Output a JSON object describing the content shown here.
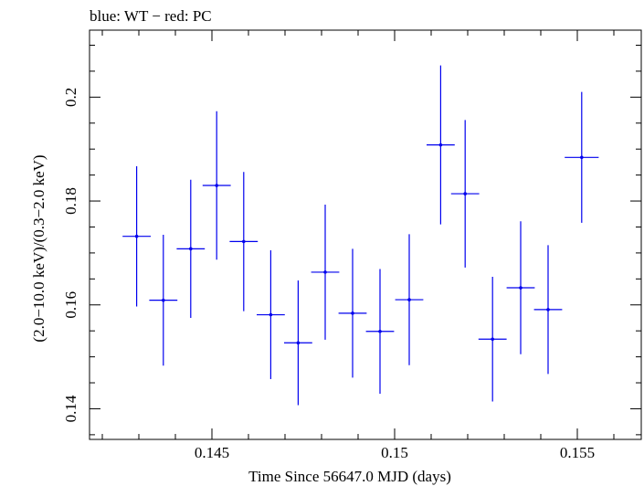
{
  "chart_data": {
    "type": "scatter",
    "title": "blue: WT − red: PC",
    "xlabel": "Time Since 56647.0 MJD (days)",
    "ylabel": "(2.0−10.0 keV)/(0.3−2.0 keV)",
    "xlim": [
      0.14165,
      0.15675
    ],
    "ylim": [
      0.1341,
      0.2129
    ],
    "x_ticks": [
      0.145,
      0.15,
      0.155
    ],
    "x_tick_labels": [
      "0.145",
      "0.15",
      "0.155"
    ],
    "y_ticks": [
      0.14,
      0.16,
      0.18,
      0.2
    ],
    "y_tick_labels": [
      "0.14",
      "0.16",
      "0.18",
      "0.2"
    ],
    "grid": false,
    "colors": {
      "series": "#0000ee",
      "axes": "#000000"
    },
    "series": [
      {
        "color": "#0000ee",
        "points": [
          {
            "x": 0.14294,
            "xerr": 0.000385,
            "y": 0.1732,
            "yerr": 0.0135
          },
          {
            "x": 0.14367,
            "xerr": 0.000385,
            "y": 0.1609,
            "yerr": 0.0126
          },
          {
            "x": 0.14442,
            "xerr": 0.000385,
            "y": 0.1708,
            "yerr": 0.0133
          },
          {
            "x": 0.14513,
            "xerr": 0.000385,
            "y": 0.183,
            "yerr": 0.0143
          },
          {
            "x": 0.14587,
            "xerr": 0.000385,
            "y": 0.1722,
            "yerr": 0.0134
          },
          {
            "x": 0.14661,
            "xerr": 0.000385,
            "y": 0.1581,
            "yerr": 0.0124
          },
          {
            "x": 0.14736,
            "xerr": 0.000385,
            "y": 0.1527,
            "yerr": 0.012
          },
          {
            "x": 0.1481,
            "xerr": 0.000385,
            "y": 0.1663,
            "yerr": 0.013
          },
          {
            "x": 0.14885,
            "xerr": 0.000385,
            "y": 0.1584,
            "yerr": 0.0124
          },
          {
            "x": 0.1496,
            "xerr": 0.000385,
            "y": 0.1549,
            "yerr": 0.012
          },
          {
            "x": 0.1504,
            "xerr": 0.000385,
            "y": 0.161,
            "yerr": 0.0126
          },
          {
            "x": 0.15126,
            "xerr": 0.000385,
            "y": 0.1908,
            "yerr": 0.0153
          },
          {
            "x": 0.15193,
            "xerr": 0.000385,
            "y": 0.1814,
            "yerr": 0.0142
          },
          {
            "x": 0.15268,
            "xerr": 0.000385,
            "y": 0.1534,
            "yerr": 0.012
          },
          {
            "x": 0.15345,
            "xerr": 0.000385,
            "y": 0.1633,
            "yerr": 0.0128
          },
          {
            "x": 0.1542,
            "xerr": 0.000385,
            "y": 0.1591,
            "yerr": 0.0124
          },
          {
            "x": 0.15512,
            "xerr": 0.000465,
            "y": 0.1884,
            "yerr": 0.0126
          }
        ]
      }
    ]
  }
}
